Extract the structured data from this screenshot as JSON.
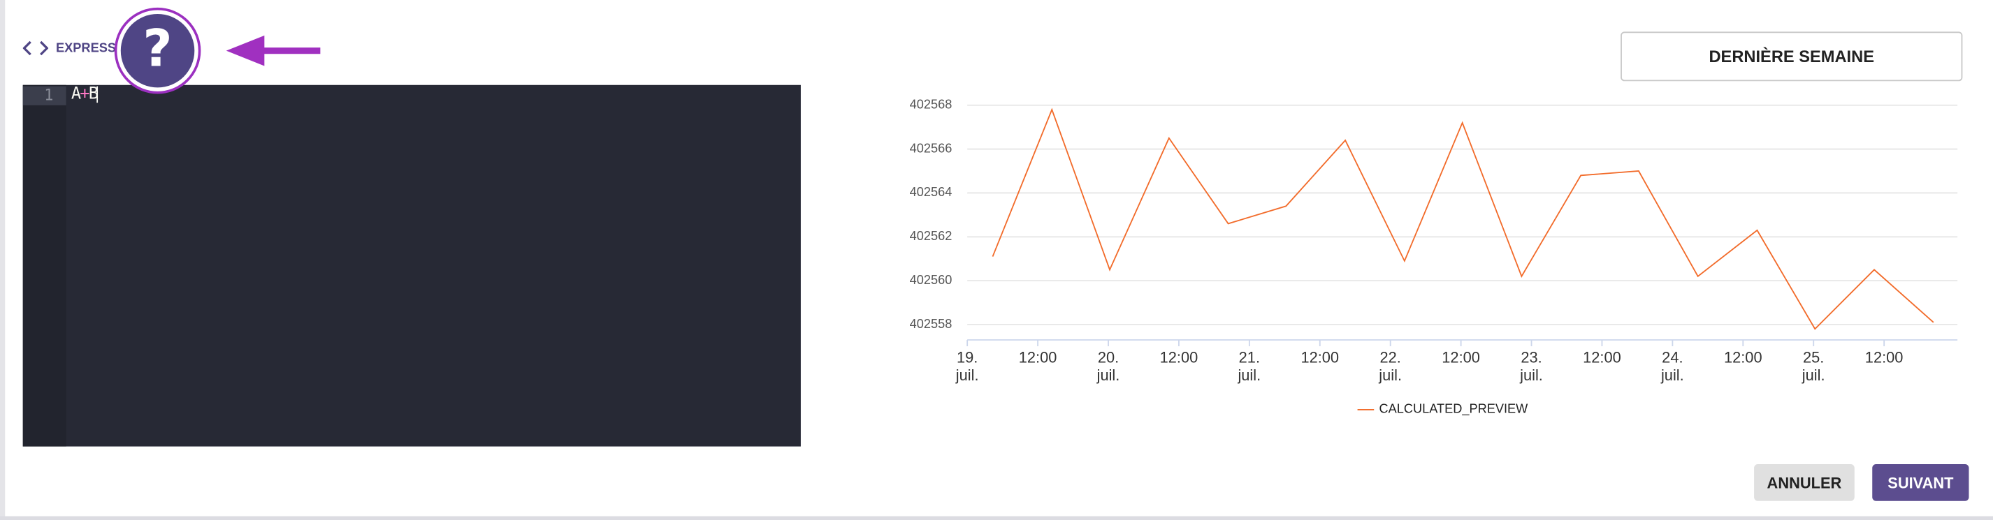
{
  "header": {
    "label": "EXPRESSION"
  },
  "editor": {
    "line_number": 1,
    "tokens": [
      "A",
      "+",
      "B"
    ]
  },
  "period_button": "DERNIÈRE SEMAINE",
  "chart_data": {
    "type": "line",
    "x": [
      19.18,
      19.6,
      20.01,
      20.43,
      20.85,
      21.26,
      21.68,
      22.1,
      22.51,
      22.93,
      23.35,
      23.76,
      24.18,
      24.6,
      25.01,
      25.43,
      25.85
    ],
    "series": [
      {
        "name": "CALCULATED_PREVIEW",
        "color": "#f26b2a",
        "values": [
          402561.1,
          402567.8,
          402560.5,
          402566.5,
          402562.6,
          402563.4,
          402566.4,
          402560.9,
          402567.2,
          402560.2,
          402564.8,
          402565.0,
          402560.2,
          402562.3,
          402557.8,
          402560.5,
          402558.1
        ]
      }
    ],
    "xlim": [
      19,
      26.02
    ],
    "xticks": [
      {
        "value": 19,
        "label": "19.\njuil."
      },
      {
        "value": 19.5,
        "label": "12:00"
      },
      {
        "value": 20,
        "label": "20.\njuil."
      },
      {
        "value": 20.5,
        "label": "12:00"
      },
      {
        "value": 21,
        "label": "21.\njuil."
      },
      {
        "value": 21.5,
        "label": "12:00"
      },
      {
        "value": 22,
        "label": "22.\njuil."
      },
      {
        "value": 22.5,
        "label": "12:00"
      },
      {
        "value": 23,
        "label": "23.\njuil."
      },
      {
        "value": 23.5,
        "label": "12:00"
      },
      {
        "value": 24,
        "label": "24.\njuil."
      },
      {
        "value": 24.5,
        "label": "12:00"
      },
      {
        "value": 25,
        "label": "25.\njuil."
      },
      {
        "value": 25.5,
        "label": "12:00"
      }
    ],
    "ylim": [
      402557.3,
      402568.46
    ],
    "yticks": [
      402558,
      402560,
      402562,
      402564,
      402566,
      402568
    ],
    "grid": true
  },
  "buttons": {
    "cancel": "ANNULER",
    "next": "SUIVANT"
  }
}
